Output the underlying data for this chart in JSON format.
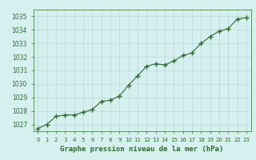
{
  "x": [
    0,
    1,
    2,
    3,
    4,
    5,
    6,
    7,
    8,
    9,
    10,
    11,
    12,
    13,
    14,
    15,
    16,
    17,
    18,
    19,
    20,
    21,
    22,
    23
  ],
  "y": [
    1026.7,
    1027.0,
    1027.6,
    1027.7,
    1027.7,
    1027.9,
    1028.1,
    1028.7,
    1028.8,
    1029.1,
    1029.9,
    1030.6,
    1031.3,
    1031.5,
    1031.4,
    1031.7,
    1032.1,
    1032.3,
    1033.0,
    1033.5,
    1033.9,
    1034.1,
    1034.8,
    1034.9
  ],
  "line_color": "#2d6a2d",
  "marker_color": "#2d6a2d",
  "bg_color": "#d6f0f0",
  "grid_color": "#b8d8d8",
  "xlabel": "Graphe pression niveau de la mer (hPa)",
  "xlabel_color": "#2d6a2d",
  "tick_color": "#2d6a2d",
  "ylim": [
    1026.5,
    1035.5
  ],
  "xlim": [
    -0.5,
    23.5
  ],
  "yticks": [
    1027,
    1028,
    1029,
    1030,
    1031,
    1032,
    1033,
    1034,
    1035
  ],
  "xticks": [
    0,
    1,
    2,
    3,
    4,
    5,
    6,
    7,
    8,
    9,
    10,
    11,
    12,
    13,
    14,
    15,
    16,
    17,
    18,
    19,
    20,
    21,
    22,
    23
  ]
}
